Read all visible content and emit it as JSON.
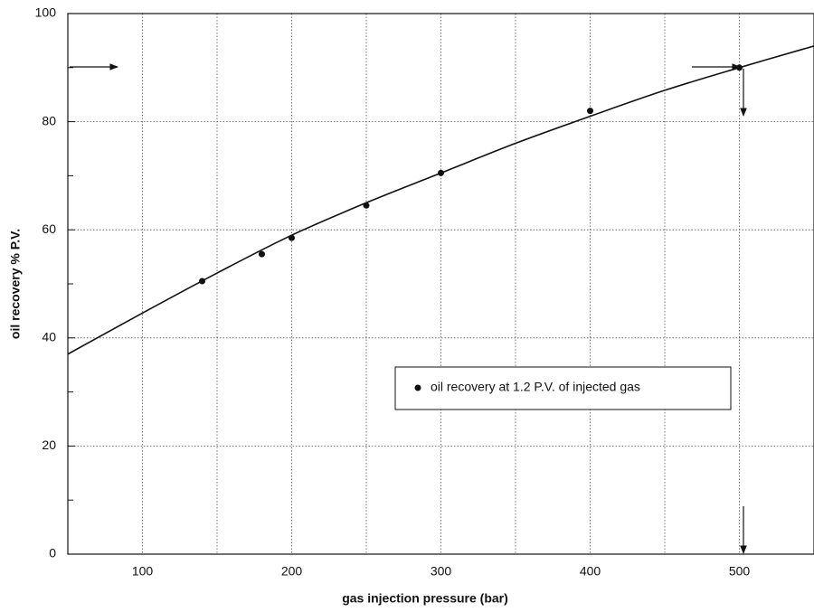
{
  "chart_data": {
    "type": "scatter",
    "x_label": "gas injection pressure (bar)",
    "y_label": "oil recovery % P.V.",
    "xlim": [
      50,
      550
    ],
    "ylim": [
      0,
      100
    ],
    "xticks": [
      100,
      200,
      300,
      400,
      500
    ],
    "yticks": [
      0,
      20,
      40,
      60,
      80,
      100
    ],
    "x_minor_grid": [
      150,
      250,
      350,
      450
    ],
    "y_minor_ticks": [
      10,
      30,
      50,
      70,
      90
    ],
    "grid": true,
    "series": [
      {
        "name": "oil recovery at 1.2 P.V. of injected gas",
        "color": "#111111",
        "x": [
          140,
          180,
          200,
          250,
          300,
          400,
          500
        ],
        "values": [
          50.5,
          55.5,
          58.5,
          64.5,
          70.5,
          82,
          90
        ]
      }
    ],
    "curve": {
      "color": "#111111",
      "x": [
        50,
        100,
        150,
        200,
        250,
        300,
        350,
        400,
        450,
        500,
        550
      ],
      "values": [
        37,
        44.6,
        52,
        59,
        65,
        70.5,
        76,
        81,
        85.8,
        90,
        94
      ]
    }
  }
}
